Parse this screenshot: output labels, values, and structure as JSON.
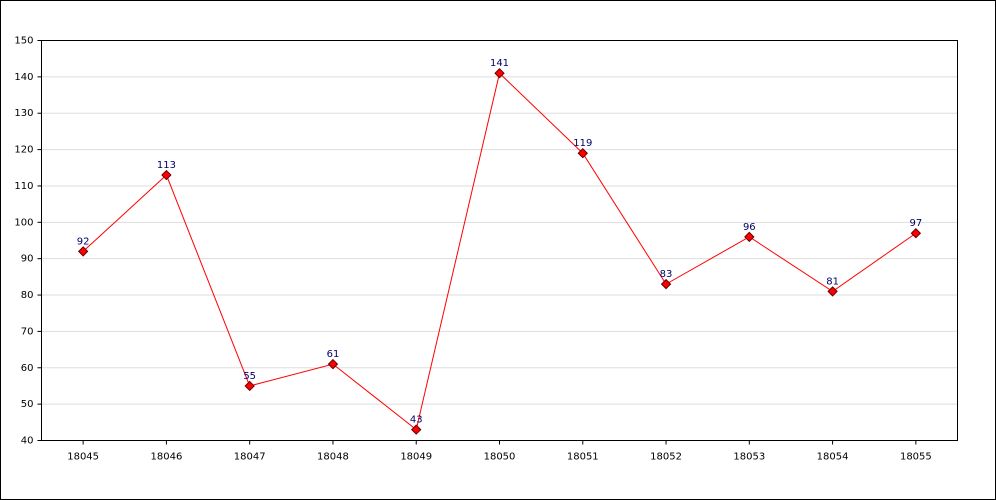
{
  "chart_data": {
    "type": "line",
    "categories": [
      "18045",
      "18046",
      "18047",
      "18048",
      "18049",
      "18050",
      "18051",
      "18052",
      "18053",
      "18054",
      "18055"
    ],
    "series": [
      {
        "color": "#ff0000",
        "values": [
          92,
          113,
          55,
          61,
          43,
          141,
          119,
          83,
          96,
          81,
          97
        ]
      }
    ],
    "ylim": [
      40,
      150
    ],
    "yticks": [
      40,
      50,
      60,
      70,
      80,
      90,
      100,
      110,
      120,
      130,
      140,
      150
    ],
    "grid": true,
    "marker_color": "#ff0000",
    "label_color": "#000066"
  }
}
